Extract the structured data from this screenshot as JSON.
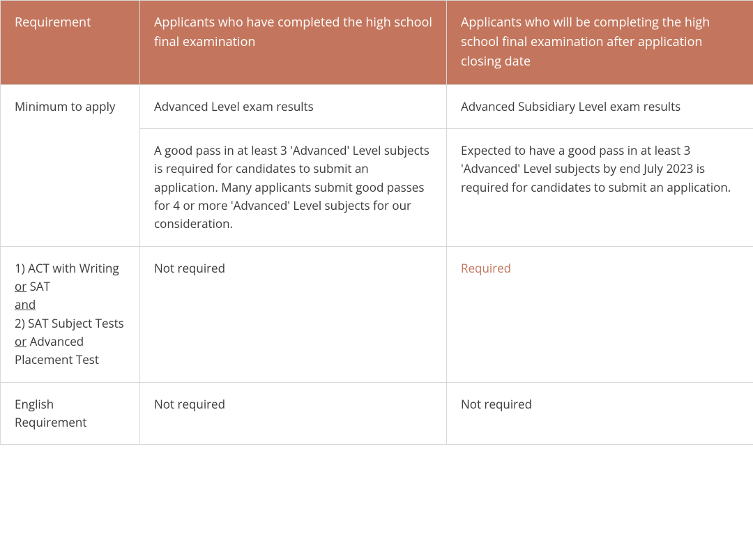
{
  "table": {
    "header_bg": "#c3765d",
    "header_text_color": "#ffffff",
    "border_color": "#d8d8d8",
    "body_text_color": "#3a3a3a",
    "highlight_color": "#c3765d",
    "font_size_header": 18,
    "font_size_body": 17,
    "columns": {
      "c1": "Requirement",
      "c2": "Applicants who have completed the high school final examination",
      "c3": "Applicants who will be completing the high school final examination after application closing date"
    },
    "rows": {
      "min_apply_label": "Minimum to apply",
      "min_apply_c2_r1": "Advanced Level exam results",
      "min_apply_c3_r1": "Advanced Subsidiary Level exam results",
      "min_apply_c2_r2": "A good pass in at least 3 'Advanced' Level subjects is required for candidates to submit an application. Many applicants submit good passes for 4 or more 'Advanced' Level subjects for our consideration.",
      "min_apply_c3_r2": "Expected to have a good pass in at least 3 'Advanced' Level subjects by end July 2023 is required for candidates to submit an application.",
      "tests_label_parts": {
        "p1": "1) ACT with Writing ",
        "or1": "or",
        "p2": " SAT",
        "and": "and",
        "p3": "2) SAT Subject Tests ",
        "or2": "or",
        "p4": " Advanced Placement Test"
      },
      "tests_c2": "Not required",
      "tests_c3": "Required",
      "english_label": "English Requirement",
      "english_c2": "Not required",
      "english_c3": "Not required"
    }
  }
}
